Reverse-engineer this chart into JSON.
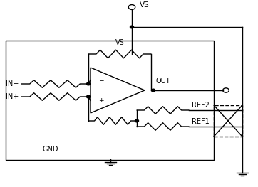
{
  "bg_color": "#ffffff",
  "line_color": "#000000",
  "vs_label": "VS",
  "out_label": "OUT",
  "ref2_label": "REF2",
  "ref1_label": "REF1",
  "gnd_label": "GND",
  "in_minus_label": "IN−",
  "in_plus_label": "IN+",
  "vs_top_label": "VS",
  "fig_w": 3.62,
  "fig_h": 2.63,
  "dpi": 100
}
